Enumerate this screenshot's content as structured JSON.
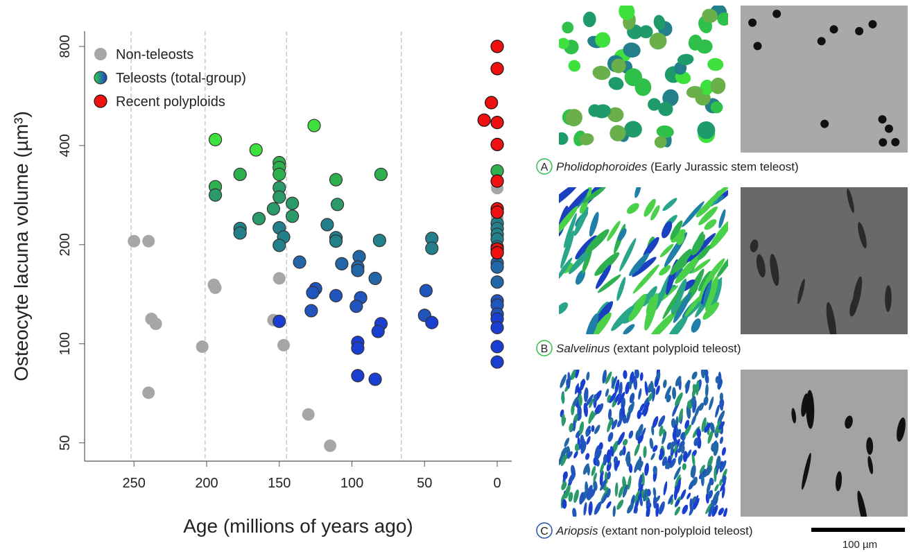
{
  "chart_data": {
    "type": "scatter",
    "x_label": "Age (millions of years ago)",
    "y_label": "Osteocyte lacuna volume (µm³)",
    "xlim": [
      284,
      -10
    ],
    "xticks": [
      250,
      200,
      150,
      100,
      50,
      0
    ],
    "ylim": [
      44,
      890
    ],
    "yticks": [
      50,
      100,
      200,
      400,
      800
    ],
    "y_scale": "log",
    "vlines": [
      252,
      201,
      145,
      66
    ],
    "legend": "upper left",
    "series": [
      {
        "name": "Non-teleosts",
        "color": "#a6a6a6",
        "stroke": "none",
        "x": [
          250,
          240,
          238,
          235,
          240,
          203,
          195,
          194,
          154,
          150,
          147,
          130,
          115,
          0,
          0
        ],
        "values": [
          205,
          205,
          119,
          115,
          71,
          98,
          151,
          148,
          118,
          158,
          99,
          61,
          49,
          297,
          241
        ]
      },
      {
        "name": "Teleosts (total-group)",
        "legend_colors": [
          "#2fd04a",
          "#1a40d0"
        ],
        "stroke": "#333333",
        "x": [
          194,
          194,
          194,
          177,
          166,
          177,
          177,
          164,
          154,
          150,
          150,
          150,
          150,
          150,
          141,
          141,
          150,
          147,
          150,
          150,
          126,
          136,
          117,
          111,
          110,
          111,
          111,
          107,
          125,
          127,
          128,
          111,
          95,
          96,
          96,
          94,
          97,
          96,
          96,
          96,
          84,
          81,
          80,
          80,
          82,
          84,
          45,
          45,
          49,
          50,
          45,
          0,
          0,
          0,
          0,
          0,
          0,
          0,
          0,
          0,
          0,
          0,
          0,
          0,
          0,
          0,
          0,
          0
        ],
        "values": [
          417,
          300,
          283,
          327,
          388,
          224,
          217,
          240,
          257,
          355,
          343,
          327,
          298,
          279,
          267,
          244,
          225,
          211,
          199,
          117,
          460,
          177,
          230,
          315,
          265,
          210,
          205,
          175,
          147,
          143,
          126,
          140,
          184,
          171,
          167,
          138,
          130,
          101,
          97,
          80,
          158,
          206,
          327,
          115,
          109,
          78,
          209,
          195,
          145,
          122,
          116,
          335,
          232,
          224,
          215,
          208,
          197,
          190,
          176,
          171,
          154,
          135,
          131,
          123,
          119,
          112,
          98,
          88
        ],
        "colors": [
          "#3de03d",
          "#2fb04f",
          "#2a9a68",
          "#2fb04f",
          "#3de03d",
          "#23808a",
          "#23808a",
          "#2a9a68",
          "#2a9a68",
          "#2fb04f",
          "#2fb04f",
          "#2fb04f",
          "#2a9a68",
          "#2a9a68",
          "#2a9a68",
          "#2a9a68",
          "#23808a",
          "#23808a",
          "#23808a",
          "#1a3fd0",
          "#3de03d",
          "#2266a8",
          "#23808a",
          "#2fb04f",
          "#2a9a68",
          "#23808a",
          "#23808a",
          "#2266a8",
          "#1f55bd",
          "#1f55bd",
          "#1f55bd",
          "#1f55bd",
          "#2266a8",
          "#2266a8",
          "#2266a8",
          "#1f55bd",
          "#1f55bd",
          "#1a3fd0",
          "#1a3fd0",
          "#1a3fd0",
          "#2266a8",
          "#23808a",
          "#2fb04f",
          "#1a3fd0",
          "#1a3fd0",
          "#1a3fd0",
          "#23808a",
          "#23808a",
          "#1f55bd",
          "#1f55bd",
          "#1a3fd0",
          "#2fb04f",
          "#23808a",
          "#23808a",
          "#23808a",
          "#23808a",
          "#23808a",
          "#23808a",
          "#2266a8",
          "#2266a8",
          "#2266a8",
          "#1f55bd",
          "#1f55bd",
          "#1f55bd",
          "#1a3fd0",
          "#1a3fd0",
          "#1a3fd0",
          "#1a3fd0"
        ]
      },
      {
        "name": "Recent polyploids",
        "color": "#ee1111",
        "stroke": "#111111",
        "x": [
          0,
          0,
          4,
          9,
          0,
          0,
          0,
          0,
          0,
          0,
          0
        ],
        "values": [
          800,
          685,
          540,
          478,
          470,
          403,
          312,
          257,
          251,
          194,
          189
        ]
      }
    ]
  },
  "figure_panels": [
    {
      "letter": "A",
      "genus": "Pholidophoroides",
      "description": "(Early Jurassic stem teleost)",
      "ring_color": "#2fc04a"
    },
    {
      "letter": "B",
      "genus": "Salvelinus",
      "description": "(extant polyploid teleost)",
      "ring_color": "#2fc04a"
    },
    {
      "letter": "C",
      "genus": "Ariopsis",
      "description": "(extant non-polyploid teleost)",
      "ring_color": "#2050b0"
    }
  ],
  "scale_bar": "100 µm"
}
